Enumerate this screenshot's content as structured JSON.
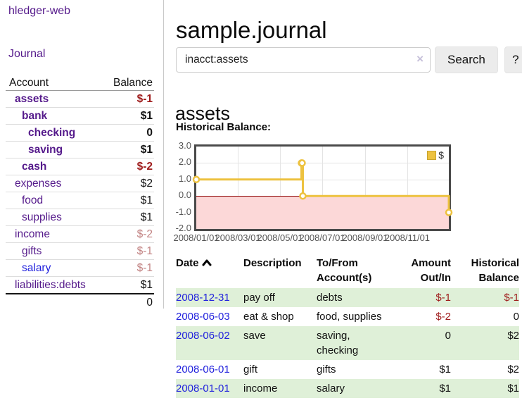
{
  "app": {
    "brand": "hledger-web"
  },
  "sidebar": {
    "journal_link": "Journal",
    "accounts": {
      "col_account": "Account",
      "col_balance": "Balance",
      "rows": [
        {
          "name": "assets",
          "balance": "$-1",
          "depth": 1,
          "emph": true,
          "bal_tone": "neg",
          "name_tone": "visited"
        },
        {
          "name": "bank",
          "balance": "$1",
          "depth": 2,
          "emph": true,
          "bal_tone": "pos",
          "name_tone": "visited"
        },
        {
          "name": "checking",
          "balance": "0",
          "depth": 3,
          "emph": true,
          "bal_tone": "pos",
          "name_tone": "visited"
        },
        {
          "name": "saving",
          "balance": "$1",
          "depth": 3,
          "emph": true,
          "bal_tone": "pos",
          "name_tone": "visited"
        },
        {
          "name": "cash",
          "balance": "$-2",
          "depth": 2,
          "emph": true,
          "bal_tone": "neg",
          "name_tone": "visited"
        },
        {
          "name": "expenses",
          "balance": "$2",
          "depth": 1,
          "emph": false,
          "bal_tone": "pos",
          "name_tone": "visited"
        },
        {
          "name": "food",
          "balance": "$1",
          "depth": 2,
          "emph": false,
          "bal_tone": "pos",
          "name_tone": "visited"
        },
        {
          "name": "supplies",
          "balance": "$1",
          "depth": 2,
          "emph": false,
          "bal_tone": "pos",
          "name_tone": "visited"
        },
        {
          "name": "income",
          "balance": "$-2",
          "depth": 1,
          "emph": false,
          "bal_tone": "negfaded",
          "name_tone": "visited"
        },
        {
          "name": "gifts",
          "balance": "$-1",
          "depth": 2,
          "emph": false,
          "bal_tone": "negfaded",
          "name_tone": "visited"
        },
        {
          "name": "salary",
          "balance": "$-1",
          "depth": 2,
          "emph": false,
          "bal_tone": "negfaded",
          "name_tone": "unvisited"
        },
        {
          "name": "liabilities:debts",
          "balance": "$1",
          "depth": 1,
          "emph": false,
          "bal_tone": "pos",
          "name_tone": "visited"
        }
      ],
      "total": "0"
    }
  },
  "main": {
    "title": "sample.journal",
    "search": {
      "value": "inacct:assets",
      "clear_label": "×",
      "submit_label": "Search",
      "help_label": "?"
    },
    "account_heading": "assets",
    "chart_heading": "Historical Balance:"
  },
  "chart_data": {
    "type": "line",
    "step": true,
    "title": "Historical Balance:",
    "series": [
      {
        "name": "$",
        "color": "#edc240",
        "points": [
          [
            "2008-01-01",
            1.0
          ],
          [
            "2008-06-01",
            2.0
          ],
          [
            "2008-06-02",
            2.0
          ],
          [
            "2008-06-03",
            0.0
          ],
          [
            "2008-12-31",
            -1.0
          ]
        ]
      }
    ],
    "x_range": [
      "2008-01-01",
      "2008-12-31"
    ],
    "ylim": [
      -2,
      3
    ],
    "y_ticks": [
      {
        "label": "3.0",
        "value": 3
      },
      {
        "label": "2.0",
        "value": 2
      },
      {
        "label": "1.0",
        "value": 1
      },
      {
        "label": "0.0",
        "value": 0
      },
      {
        "label": "-1.0",
        "value": -1
      },
      {
        "label": "-2.0",
        "value": -2
      }
    ],
    "x_ticks": [
      {
        "label": "2008/01/01",
        "date": "2008-01-01"
      },
      {
        "label": "2008/03/01",
        "date": "2008-03-01"
      },
      {
        "label": "2008/05/01",
        "date": "2008-05-01"
      },
      {
        "label": "2008/07/01",
        "date": "2008-07-01"
      },
      {
        "label": "2008/09/01",
        "date": "2008-09-01"
      },
      {
        "label": "2008/11/01",
        "date": "2008-11-01"
      }
    ],
    "grid": true,
    "legend": {
      "label": "$",
      "position": "top-right"
    },
    "negative_region": true,
    "colors": {
      "line": "#edc240",
      "marker_fill": "#ffffff",
      "negative_fill": "#fcd8d8",
      "zero_line": "#8b0000",
      "grid": "#e4e4e4",
      "border": "#4a4a4a",
      "legend_swatch_border": "#c9a42e"
    }
  },
  "register": {
    "headers": {
      "date": "Date",
      "description": "Description",
      "accounts": "To/From Account(s)",
      "amount": "Amount Out/In",
      "balance": "Historical Balance"
    },
    "sort_icon": "chevron-up",
    "rows": [
      {
        "date": "2008-12-31",
        "description": "pay off",
        "accounts": "debts",
        "amount": "$-1",
        "balance": "$-1",
        "amount_tone": "neg",
        "balance_tone": "neg",
        "striped": true
      },
      {
        "date": "2008-06-03",
        "description": "eat & shop",
        "accounts": "food, supplies",
        "amount": "$-2",
        "balance": "0",
        "amount_tone": "neg",
        "balance_tone": "pos",
        "striped": false
      },
      {
        "date": "2008-06-02",
        "description": "save",
        "accounts": "saving, checking",
        "amount": "0",
        "balance": "$2",
        "amount_tone": "pos",
        "balance_tone": "pos",
        "striped": true
      },
      {
        "date": "2008-06-01",
        "description": "gift",
        "accounts": "gifts",
        "amount": "$1",
        "balance": "$2",
        "amount_tone": "pos",
        "balance_tone": "pos",
        "striped": false
      },
      {
        "date": "2008-01-01",
        "description": "income",
        "accounts": "salary",
        "amount": "$1",
        "balance": "$1",
        "amount_tone": "pos",
        "balance_tone": "pos",
        "striped": true
      }
    ]
  },
  "colors": {
    "accent_purple": "#551a8b",
    "link_blue": "#2222dd",
    "negative_red": "#9e1b1b",
    "negative_faded": "#c28383",
    "row_green": "#dff0d8"
  }
}
